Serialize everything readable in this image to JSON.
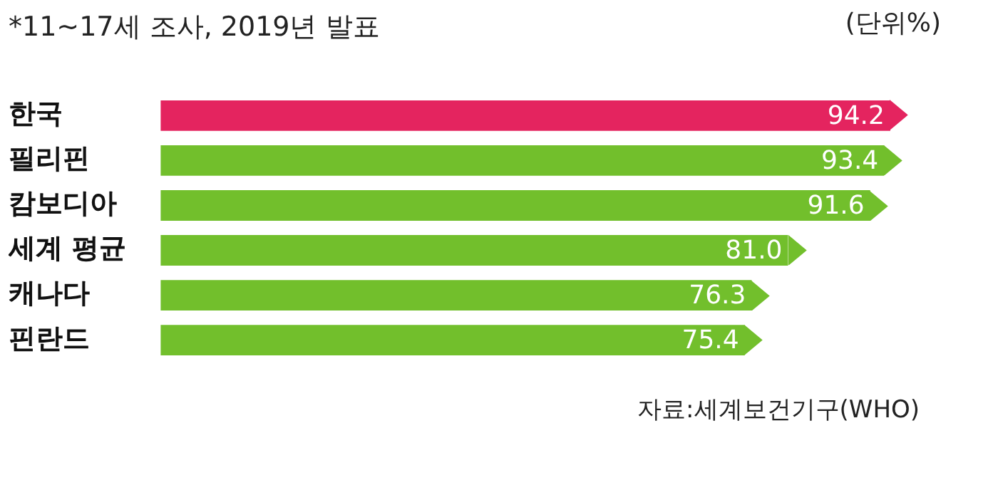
{
  "chart_data": {
    "type": "bar",
    "orientation": "horizontal",
    "title": "*11~17세 조사, 2019년 발표",
    "categories": [
      "한국",
      "필리핀",
      "캄보디아",
      "세계 평균",
      "캐나다",
      "핀란드"
    ],
    "values": [
      94.2,
      93.4,
      91.6,
      81.0,
      76.3,
      75.4
    ],
    "value_labels": [
      "94.2",
      "93.4",
      "91.6",
      "81.0",
      "76.3",
      "75.4"
    ],
    "colors": [
      "#e4245f",
      "#72bf2c",
      "#72bf2c",
      "#72bf2c",
      "#72bf2c",
      "#72bf2c"
    ],
    "annotations": [
      "(단위%)",
      "자료:세계보건기구(WHO)"
    ],
    "grid": false,
    "legend": false
  }
}
